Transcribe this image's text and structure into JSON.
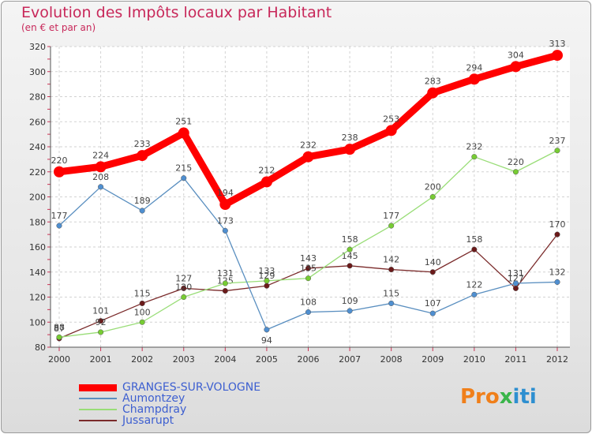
{
  "title": "Evolution des Impôts locaux par Habitant",
  "subtitle": "(en € et par an)",
  "logo": {
    "text": "Proxiti"
  },
  "chart_data": {
    "type": "line",
    "x": [
      2000,
      2001,
      2002,
      2003,
      2004,
      2005,
      2006,
      2007,
      2008,
      2009,
      2010,
      2011,
      2012
    ],
    "ylim": [
      80,
      320
    ],
    "yticks": [
      80,
      100,
      120,
      140,
      160,
      180,
      200,
      220,
      240,
      260,
      280,
      300,
      320
    ],
    "grid": true,
    "legend_position": "bottom-left",
    "series": [
      {
        "name": "GRANGES-SUR-VOLOGNE",
        "color": "#ff0000",
        "marker_color": "#ff0000",
        "values": [
          220,
          224,
          233,
          251,
          194,
          212,
          232,
          238,
          253,
          283,
          294,
          304,
          313
        ]
      },
      {
        "name": "Aumontzey",
        "color": "#5a8fc0",
        "marker_color": "#4f8fd0",
        "values": [
          177,
          208,
          189,
          215,
          173,
          94,
          108,
          109,
          115,
          107,
          122,
          131,
          132
        ]
      },
      {
        "name": "Champdray",
        "color": "#99dd77",
        "marker_color": "#77cc33",
        "values": [
          88,
          92,
          100,
          120,
          131,
          133,
          135,
          158,
          177,
          200,
          232,
          220,
          237
        ]
      },
      {
        "name": "Jussarupt",
        "color": "#7a2a2a",
        "marker_color": "#6b1a1a",
        "values": [
          87,
          101,
          115,
          127,
          125,
          129,
          143,
          145,
          142,
          140,
          158,
          127,
          170
        ]
      }
    ]
  }
}
